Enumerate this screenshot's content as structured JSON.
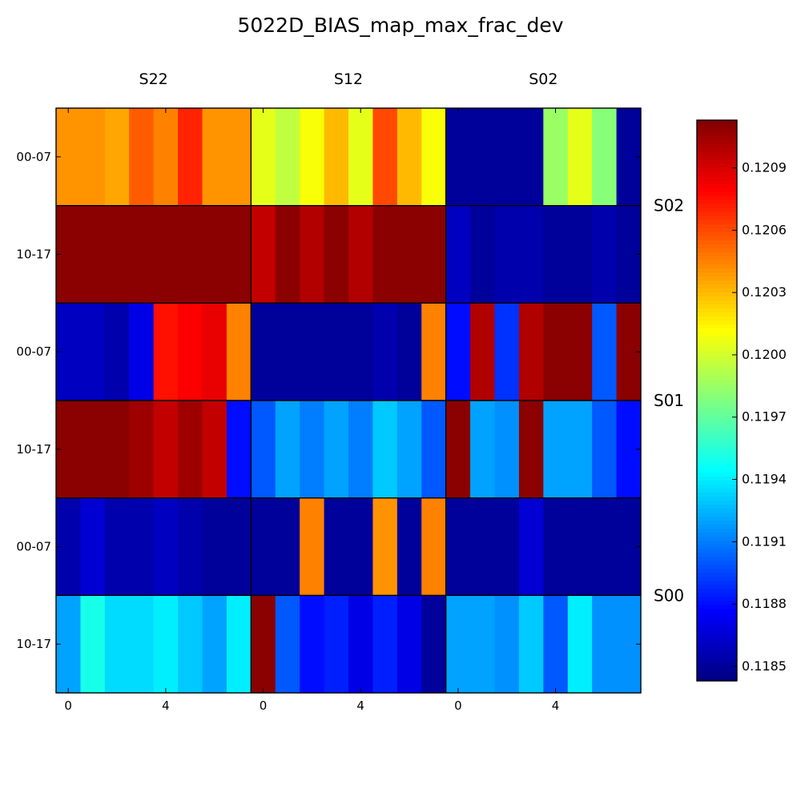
{
  "chart_data": {
    "type": "heatmap",
    "title": "5022D_BIAS_map_max_frac_dev",
    "colormap": "jet",
    "vmin": 0.11843,
    "vmax": 0.12113,
    "column_groups": [
      "S22",
      "S12",
      "S02"
    ],
    "row_groups": [
      "S02",
      "S01",
      "S00"
    ],
    "y_tick_labels": [
      "00-07",
      "10-17",
      "00-07",
      "10-17",
      "00-07",
      "10-17"
    ],
    "x_tick_labels": [
      "0",
      "4",
      "0",
      "4",
      "0",
      "4"
    ],
    "colorbar_ticks": [
      "0.1185",
      "0.1188",
      "0.1191",
      "0.1194",
      "0.1197",
      "0.1200",
      "0.1203",
      "0.1206",
      "0.1209"
    ],
    "colorbar_tick_values": [
      0.1185,
      0.1188,
      0.1191,
      0.1194,
      0.1197,
      0.12,
      0.1203,
      0.1206,
      0.1209
    ],
    "rows": [
      [
        0.1204,
        0.1204,
        0.12035,
        0.12055,
        0.12045,
        0.1207,
        0.1204,
        0.1204,
        0.12005,
        0.11995,
        0.1201,
        0.1203,
        0.12005,
        0.1206,
        0.1203,
        0.1201,
        0.1185,
        0.1185,
        0.1185,
        0.1185,
        0.11985,
        0.12005,
        0.1198,
        0.1185
      ],
      [
        0.1211,
        0.1211,
        0.1211,
        0.1211,
        0.1211,
        0.1211,
        0.1211,
        0.1211,
        0.12095,
        0.1211,
        0.121,
        0.1211,
        0.121,
        0.1211,
        0.1211,
        0.1211,
        0.1186,
        0.1185,
        0.11855,
        0.11855,
        0.1185,
        0.1185,
        0.11855,
        0.1185
      ],
      [
        0.1186,
        0.1186,
        0.11855,
        0.1187,
        0.12075,
        0.1208,
        0.12085,
        0.12045,
        0.1185,
        0.1185,
        0.1185,
        0.1185,
        0.1185,
        0.11855,
        0.1185,
        0.12045,
        0.1188,
        0.121,
        0.1189,
        0.121,
        0.1211,
        0.1211,
        0.119,
        0.1211
      ],
      [
        0.1211,
        0.1211,
        0.1211,
        0.12105,
        0.12095,
        0.12105,
        0.12095,
        0.1188,
        0.119,
        0.1192,
        0.1191,
        0.1192,
        0.1191,
        0.1193,
        0.1192,
        0.119,
        0.1211,
        0.1192,
        0.11915,
        0.1211,
        0.1192,
        0.1192,
        0.119,
        0.1188
      ],
      [
        0.11855,
        0.11865,
        0.11855,
        0.11855,
        0.1186,
        0.11855,
        0.1185,
        0.1185,
        0.1185,
        0.1185,
        0.12045,
        0.1185,
        0.1185,
        0.1204,
        0.1185,
        0.12045,
        0.1185,
        0.1185,
        0.1185,
        0.11865,
        0.1185,
        0.1185,
        0.1185,
        0.1185
      ],
      [
        0.1192,
        0.1195,
        0.11935,
        0.11935,
        0.1194,
        0.1193,
        0.1192,
        0.1194,
        0.1211,
        0.119,
        0.1188,
        0.11885,
        0.1187,
        0.11885,
        0.1187,
        0.1185,
        0.1192,
        0.1192,
        0.11915,
        0.1193,
        0.119,
        0.1194,
        0.11915,
        0.11915
      ]
    ]
  }
}
